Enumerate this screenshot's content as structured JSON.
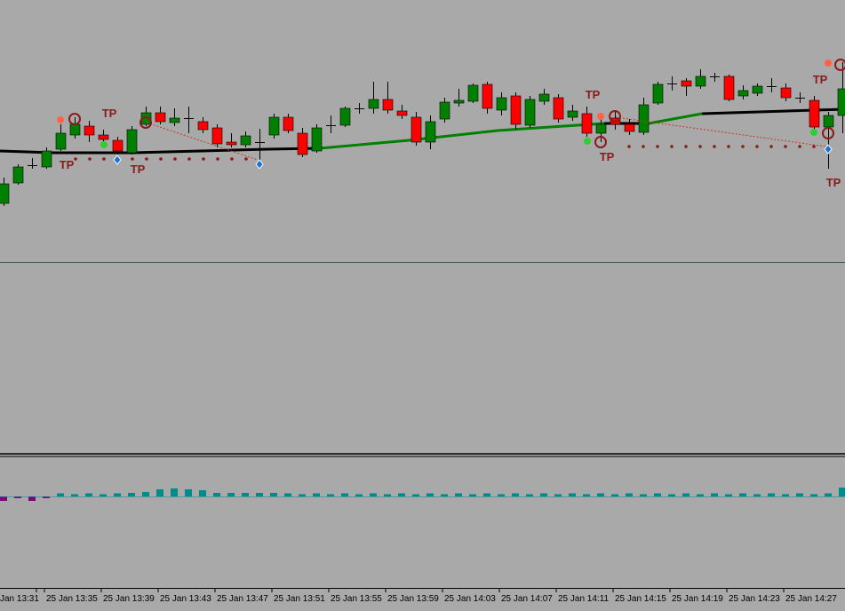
{
  "axis": {
    "time_labels": [
      "Jan 13:31",
      "25 Jan 13:35",
      "25 Jan 13:39",
      "25 Jan 13:43",
      "25 Jan 13:47",
      "25 Jan 13:51",
      "25 Jan 13:55",
      "25 Jan 13:59",
      "25 Jan 14:03",
      "25 Jan 14:07",
      "25 Jan 14:11",
      "25 Jan 14:15",
      "25 Jan 14:19",
      "25 Jan 14:23",
      "25 Jan 14:27"
    ]
  },
  "annotations": {
    "tp": [
      "TP",
      "TP",
      "TP",
      "TP",
      "TP",
      "TP",
      "TP"
    ]
  }
}
